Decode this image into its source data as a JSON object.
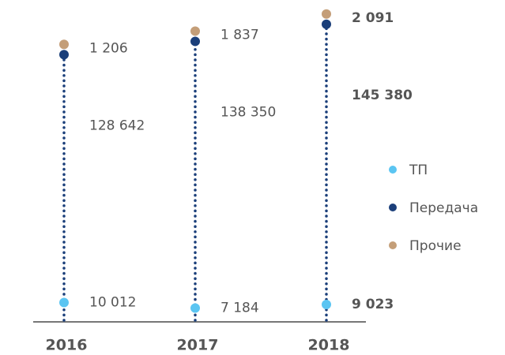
{
  "chart_data": {
    "type": "dot",
    "categories": [
      "2016",
      "2017",
      "2018"
    ],
    "series": [
      {
        "name": "ТП",
        "color": "#5bc5f2",
        "values": [
          10012,
          7184,
          9023
        ],
        "value_labels": [
          "10 012",
          "7 184",
          "9 023"
        ]
      },
      {
        "name": "Передача",
        "color": "#1b3f7a",
        "values": [
          128642,
          138350,
          145380
        ],
        "value_labels": [
          "128 642",
          "138 350",
          "145 380"
        ]
      },
      {
        "name": "Прочие",
        "color": "#c49e78",
        "values": [
          1206,
          1837,
          2091
        ],
        "value_labels": [
          "1 206",
          "1 837",
          "2 091"
        ]
      }
    ],
    "ylim": [
      0,
      167000
    ]
  }
}
